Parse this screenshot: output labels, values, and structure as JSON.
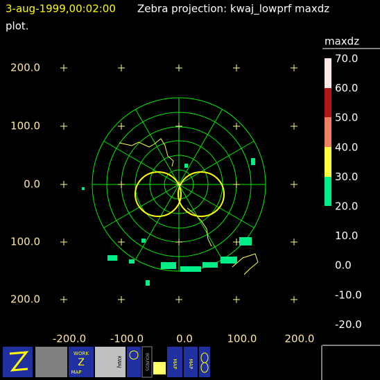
{
  "header": {
    "timestamp": "3-aug-1999,00:02:00",
    "title": "Zebra projection: kwaj_lowprf maxdz",
    "title_cont": "plot."
  },
  "y_axis_labels": [
    "200.0",
    "100.0",
    "0.0",
    "100.0",
    "200.0"
  ],
  "x_axis_labels": [
    "-200.0",
    "-100.0",
    "0.0",
    "100.0",
    "200.0"
  ],
  "legend": {
    "title": "maxdz",
    "labels": [
      "70.0",
      "60.0",
      "50.0",
      "40.0",
      "30.0",
      "20.0",
      "10.0",
      "0.0",
      "-10.0",
      "-20.0"
    ]
  },
  "toolbar": {
    "work_map": [
      "WORK",
      "Z",
      "MAP"
    ],
    "kwaj": "KWAJ",
    "bounds": "BOUNDS",
    "map1": "MAP",
    "map2": "MAP"
  }
}
